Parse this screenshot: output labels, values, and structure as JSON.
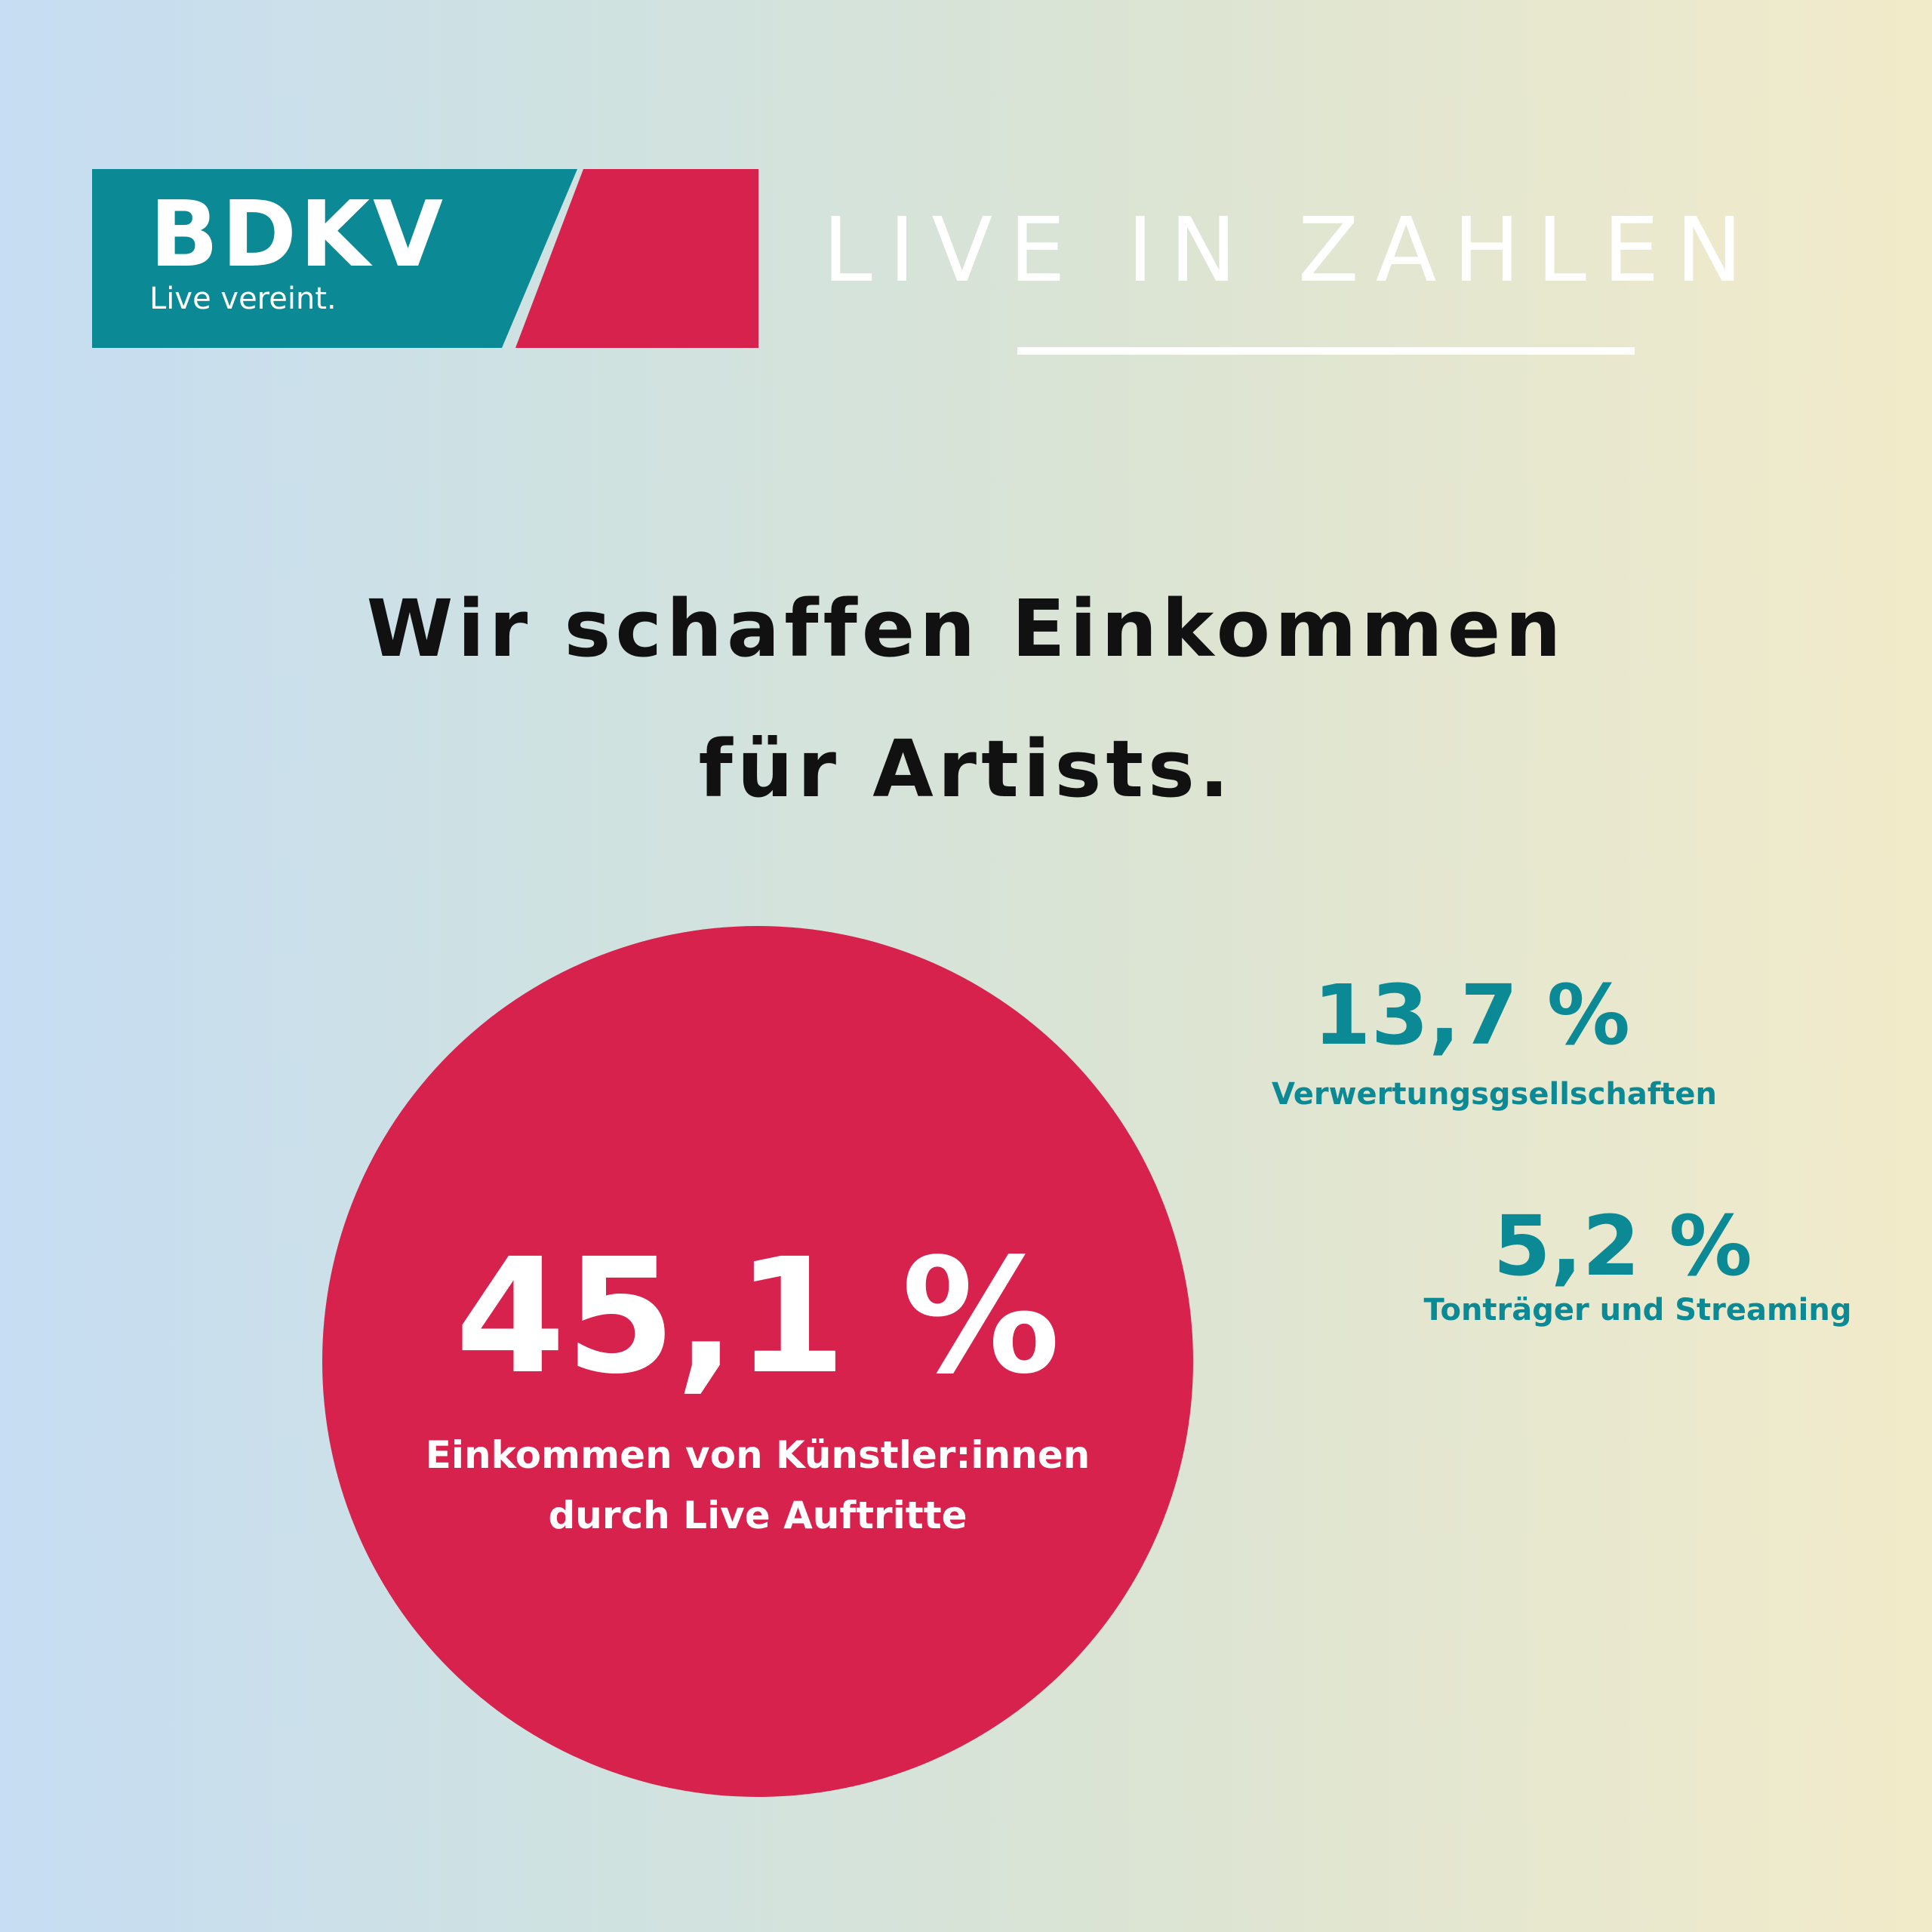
{
  "colors": {
    "teal": "#0b8994",
    "red": "#d6224c",
    "white": "#ffffff",
    "text_dark": "#111111"
  },
  "logo": {
    "name": "BDKV",
    "tagline": "Live vereint."
  },
  "header": {
    "headline": "LIVE IN ZAHLEN"
  },
  "title": {
    "line1": "Wir schaffen Einkommen",
    "line2": "für Artists."
  },
  "main_stat": {
    "value": "45,1 %",
    "label_line1": "Einkommen von Künstler:innen",
    "label_line2": "durch Live Auftritte"
  },
  "stats": [
    {
      "value": "13,7 %",
      "label": "Verwertungsgsellschaften"
    },
    {
      "value": "5,2 %",
      "label": "Tonträger und Streaming"
    }
  ]
}
